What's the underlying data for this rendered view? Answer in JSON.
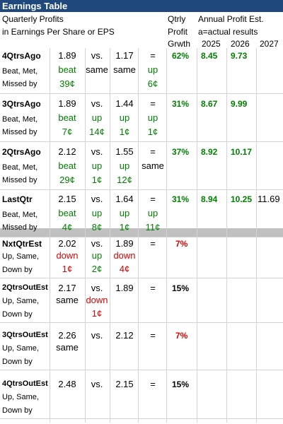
{
  "title": "Earnings Table",
  "header": {
    "line1": "Quarterly Profits",
    "line2": "in Earnings Per Share or EPS",
    "qtrly1": "Qtrly",
    "qtrly2": "Profit",
    "qtrly3": "Grwth",
    "annual": "Annual Profit Est.",
    "actual": "a=actual results",
    "y2025": "2025",
    "y2026": "2026",
    "y2027": "2027"
  },
  "blocks": [
    {
      "name": "4QtrsAgo",
      "sub1": "Beat, Met,",
      "sub2": "Missed by",
      "eps": "1.89",
      "vs": "vs.",
      "prev": "1.17",
      "eq": "=",
      "growth": "62%",
      "est2025": "8.45",
      "est2026": "9.73",
      "est2027": "",
      "r2": [
        "beat",
        "same",
        "same",
        "up"
      ],
      "r3": [
        "39¢",
        "",
        "",
        "6¢"
      ]
    },
    {
      "name": "3QtrsAgo",
      "sub1": "Beat, Met,",
      "sub2": "Missed by",
      "eps": "1.89",
      "vs": "vs.",
      "prev": "1.44",
      "eq": "=",
      "growth": "31%",
      "est2025": "8.67",
      "est2026": "9.99",
      "est2027": "",
      "r2": [
        "beat",
        "up",
        "up",
        "up"
      ],
      "r3": [
        "7¢",
        "14¢",
        "1¢",
        "1¢"
      ]
    },
    {
      "name": "2QtrsAgo",
      "sub1": "Beat, Met,",
      "sub2": "Missed by",
      "eps": "2.12",
      "vs": "vs.",
      "prev": "1.55",
      "eq": "=",
      "growth": "37%",
      "est2025": "8.92",
      "est2026": "10.17",
      "est2027": "",
      "r2": [
        "beat",
        "up",
        "up",
        "same"
      ],
      "r3": [
        "29¢",
        "1¢",
        "12¢",
        ""
      ]
    },
    {
      "name": "LastQtr",
      "sub1": "Beat, Met,",
      "sub2": "Missed by",
      "eps": "2.15",
      "vs": "vs.",
      "prev": "1.64",
      "eq": "=",
      "growth": "31%",
      "est2025": "8.94",
      "est2026": "10.25",
      "est2027": "11.69",
      "r2": [
        "beat",
        "up",
        "up",
        "up"
      ],
      "r3": [
        "4¢",
        "8¢",
        "1¢",
        "11¢"
      ]
    }
  ],
  "estimates": [
    {
      "name": "NxtQtrEst",
      "sub1": "Up, Same,",
      "sub2": "Down by",
      "eps": "2.02",
      "vs": "vs.",
      "prev": "1.89",
      "eq": "=",
      "growth": "7%",
      "r2": [
        "down",
        "up",
        "down",
        ""
      ],
      "r3": [
        "1¢",
        "2¢",
        "4¢",
        ""
      ]
    },
    {
      "name": "2QtrsOutEst",
      "sub1": "Up, Same,",
      "sub2": "Down by",
      "eps": "2.17",
      "vs": "vs.",
      "prev": "1.89",
      "eq": "=",
      "growth": "15%",
      "r2": [
        "same",
        "down",
        "",
        ""
      ],
      "r3": [
        "",
        "1¢",
        "",
        ""
      ]
    },
    {
      "name": "3QtrsOutEst",
      "sub1": "Up, Same,",
      "sub2": "Down by",
      "eps": "2.26",
      "vs": "vs.",
      "prev": "2.12",
      "eq": "=",
      "growth": "7%",
      "r2": [
        "same",
        "",
        "",
        ""
      ],
      "r3": [
        "",
        "",
        "",
        ""
      ]
    },
    {
      "name": "4QtrsOutEst",
      "sub1": "Up, Same,",
      "sub2": "Down by",
      "eps": "2.48",
      "vs": "vs.",
      "prev": "2.15",
      "eq": "=",
      "growth": "15%",
      "r2": [
        "",
        "",
        "",
        ""
      ],
      "r3": [
        "",
        "",
        "",
        ""
      ]
    }
  ],
  "colors": {
    "title_bg": "#1f497d",
    "green": "#008000",
    "red": "#e00000",
    "separator": "#c0c0c0"
  }
}
